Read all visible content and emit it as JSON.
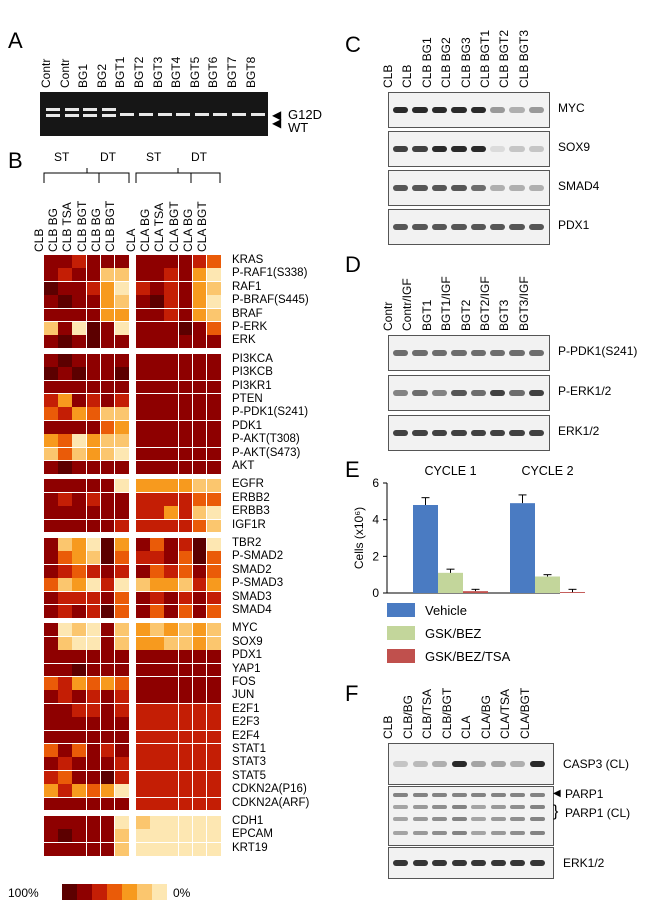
{
  "panels": {
    "a": "A",
    "b": "B",
    "c": "C",
    "d": "D",
    "e": "E",
    "f": "F"
  },
  "panelA": {
    "lanes": [
      "Contr",
      "Contr",
      "BG1",
      "BG2",
      "BGT1",
      "BGT2",
      "BGT3",
      "BGT4",
      "BGT5",
      "BGT6",
      "BGT7",
      "BGT8"
    ],
    "band_g12d": "G12D",
    "band_wt": "WT"
  },
  "panelB": {
    "groups": {
      "st1": "ST",
      "dt1": "DT",
      "st2": "ST",
      "dt2": "DT"
    },
    "cols_left": [
      "CLB",
      "CLB BG",
      "CLB TSA",
      "CLB BGT",
      "CLB BG",
      "CLB BGT"
    ],
    "cols_right": [
      "CLA",
      "CLA BG",
      "CLA TSA",
      "CLA BGT",
      "CLA BG",
      "CLA BGT"
    ],
    "legend_max": "100%",
    "legend_min": "0%",
    "palette": [
      "#5c0000",
      "#8e0000",
      "#c41e05",
      "#ea5b08",
      "#f79a1e",
      "#fbc66e",
      "#fde7b2"
    ],
    "blocks": [
      {
        "genes": [
          "KRAS",
          "P-RAF1(S338)",
          "RAF1",
          "P-BRAF(S445)",
          "BRAF",
          "P-ERK",
          "ERK"
        ],
        "left": [
          [
            1,
            1,
            2,
            1,
            1,
            1
          ],
          [
            1,
            2,
            1,
            1,
            5,
            5
          ],
          [
            0,
            1,
            1,
            2,
            4,
            6
          ],
          [
            1,
            0,
            1,
            1,
            4,
            5
          ],
          [
            1,
            1,
            1,
            1,
            4,
            4
          ],
          [
            5,
            1,
            6,
            0,
            1,
            6
          ],
          [
            1,
            0,
            1,
            0,
            1,
            1
          ]
        ],
        "right": [
          [
            1,
            1,
            1,
            1,
            2,
            3
          ],
          [
            1,
            1,
            2,
            1,
            4,
            6
          ],
          [
            2,
            1,
            2,
            1,
            4,
            5
          ],
          [
            1,
            0,
            2,
            1,
            4,
            6
          ],
          [
            1,
            1,
            2,
            1,
            4,
            5
          ],
          [
            1,
            1,
            1,
            0,
            1,
            3
          ],
          [
            1,
            1,
            1,
            1,
            1,
            1
          ]
        ]
      },
      {
        "genes": [
          "PI3KCA",
          "PI3KCB",
          "PI3KR1",
          "PTEN",
          "P-PDK1(S241)",
          "PDK1",
          "P-AKT(T308)",
          "P-AKT(S473)",
          "AKT"
        ],
        "left": [
          [
            1,
            0,
            1,
            1,
            1,
            1
          ],
          [
            0,
            1,
            0,
            1,
            1,
            0
          ],
          [
            1,
            1,
            1,
            1,
            1,
            1
          ],
          [
            2,
            4,
            1,
            2,
            1,
            2
          ],
          [
            3,
            2,
            4,
            3,
            5,
            5
          ],
          [
            1,
            1,
            1,
            1,
            3,
            4
          ],
          [
            4,
            3,
            6,
            4,
            5,
            5
          ],
          [
            5,
            3,
            5,
            4,
            5,
            6
          ],
          [
            1,
            0,
            1,
            1,
            1,
            1
          ]
        ],
        "right": [
          [
            1,
            1,
            1,
            1,
            1,
            1
          ],
          [
            1,
            1,
            1,
            1,
            1,
            1
          ],
          [
            1,
            1,
            1,
            1,
            1,
            1
          ],
          [
            1,
            1,
            1,
            1,
            1,
            1
          ],
          [
            1,
            1,
            1,
            1,
            1,
            1
          ],
          [
            1,
            1,
            1,
            1,
            1,
            1
          ],
          [
            1,
            1,
            1,
            1,
            1,
            1
          ],
          [
            1,
            1,
            1,
            1,
            1,
            1
          ],
          [
            1,
            1,
            1,
            1,
            1,
            1
          ]
        ]
      },
      {
        "genes": [
          "EGFR",
          "ERBB2",
          "ERBB3",
          "IGF1R"
        ],
        "left": [
          [
            1,
            1,
            1,
            1,
            1,
            6
          ],
          [
            1,
            2,
            1,
            2,
            1,
            1
          ],
          [
            1,
            1,
            1,
            1,
            1,
            1
          ],
          [
            1,
            1,
            1,
            1,
            1,
            2
          ]
        ],
        "right": [
          [
            4,
            4,
            4,
            4,
            5,
            5
          ],
          [
            2,
            2,
            2,
            2,
            3,
            3
          ],
          [
            2,
            2,
            4,
            2,
            5,
            6
          ],
          [
            2,
            2,
            2,
            2,
            3,
            5
          ]
        ]
      },
      {
        "genes": [
          "TBR2",
          "P-SMAD2",
          "SMAD2",
          "P-SMAD3",
          "SMAD3",
          "SMAD4"
        ],
        "left": [
          [
            1,
            5,
            4,
            6,
            0,
            4
          ],
          [
            1,
            3,
            4,
            5,
            0,
            3
          ],
          [
            1,
            2,
            3,
            2,
            1,
            2
          ],
          [
            3,
            5,
            4,
            6,
            2,
            6
          ],
          [
            1,
            2,
            2,
            2,
            1,
            3
          ],
          [
            1,
            2,
            1,
            2,
            0,
            3
          ]
        ],
        "right": [
          [
            1,
            3,
            1,
            2,
            0,
            6
          ],
          [
            2,
            2,
            1,
            3,
            0,
            3
          ],
          [
            1,
            3,
            2,
            3,
            1,
            3
          ],
          [
            5,
            4,
            4,
            5,
            2,
            4
          ],
          [
            1,
            2,
            1,
            2,
            1,
            2
          ],
          [
            1,
            3,
            1,
            3,
            1,
            3
          ]
        ]
      },
      {
        "genes": [
          "MYC",
          "SOX9",
          "PDX1",
          "YAP1",
          "FOS",
          "JUN",
          "E2F1",
          "E2F3",
          "E2F4",
          "STAT1",
          "STAT3",
          "STAT5",
          "CDKN2A(P16)",
          "CDKN2A(ARF)"
        ],
        "left": [
          [
            1,
            6,
            5,
            6,
            1,
            5
          ],
          [
            1,
            5,
            6,
            6,
            1,
            5
          ],
          [
            1,
            1,
            1,
            1,
            1,
            1
          ],
          [
            1,
            1,
            0,
            1,
            1,
            1
          ],
          [
            3,
            2,
            4,
            3,
            4,
            3
          ],
          [
            1,
            2,
            1,
            2,
            1,
            2
          ],
          [
            1,
            1,
            2,
            2,
            1,
            2
          ],
          [
            1,
            1,
            1,
            1,
            1,
            1
          ],
          [
            1,
            1,
            1,
            1,
            1,
            1
          ],
          [
            3,
            1,
            3,
            1,
            2,
            1
          ],
          [
            1,
            2,
            1,
            1,
            1,
            2
          ],
          [
            2,
            3,
            1,
            1,
            0,
            2
          ],
          [
            4,
            2,
            4,
            3,
            4,
            6
          ],
          [
            1,
            1,
            1,
            1,
            1,
            1
          ]
        ],
        "right": [
          [
            4,
            5,
            4,
            5,
            4,
            5
          ],
          [
            4,
            4,
            5,
            5,
            4,
            5
          ],
          [
            1,
            1,
            1,
            1,
            1,
            1
          ],
          [
            1,
            1,
            1,
            1,
            1,
            1
          ],
          [
            1,
            1,
            1,
            1,
            1,
            1
          ],
          [
            1,
            1,
            1,
            1,
            1,
            1
          ],
          [
            2,
            2,
            2,
            2,
            2,
            2
          ],
          [
            2,
            2,
            2,
            2,
            2,
            2
          ],
          [
            2,
            2,
            2,
            2,
            2,
            2
          ],
          [
            2,
            2,
            2,
            2,
            2,
            2
          ],
          [
            2,
            2,
            2,
            2,
            2,
            2
          ],
          [
            2,
            2,
            2,
            2,
            2,
            2
          ],
          [
            2,
            2,
            2,
            2,
            2,
            2
          ],
          [
            2,
            2,
            2,
            2,
            2,
            2
          ]
        ]
      },
      {
        "genes": [
          "CDH1",
          "EPCAM",
          "KRT19"
        ],
        "left": [
          [
            1,
            1,
            1,
            1,
            1,
            6
          ],
          [
            1,
            0,
            1,
            1,
            1,
            5
          ],
          [
            1,
            1,
            1,
            1,
            1,
            5
          ]
        ],
        "right": [
          [
            5,
            6,
            6,
            6,
            6,
            6
          ],
          [
            6,
            6,
            6,
            6,
            6,
            6
          ],
          [
            6,
            6,
            6,
            6,
            6,
            6
          ]
        ]
      }
    ]
  },
  "panelC": {
    "lanes": [
      "CLB",
      "CLB",
      "CLB BG1",
      "CLB BG2",
      "CLB BG3",
      "CLB BGT1",
      "CLB BGT2",
      "CLB BGT3"
    ],
    "blots": [
      "MYC",
      "SOX9",
      "SMAD4",
      "PDX1"
    ]
  },
  "panelD": {
    "lanes": [
      "Contr",
      "Contr/IGF",
      "BGT1",
      "BGT1/IGF",
      "BGT2",
      "BGT2/IGF",
      "BGT3",
      "BGT3/IGF"
    ],
    "blots": [
      "P-PDK1(S241)",
      "P-ERK1/2",
      "ERK1/2"
    ]
  },
  "panelF": {
    "lanes": [
      "CLB",
      "CLB/BG",
      "CLB/TSA",
      "CLB/BGT",
      "CLA",
      "CLA/BG",
      "CLA/TSA",
      "CLA/BGT"
    ],
    "blots": {
      "casp3": "CASP3 (CL)",
      "parp1": "PARP1",
      "parp1cl": "PARP1 (CL)",
      "erk": "ERK1/2"
    }
  },
  "chart_data": {
    "type": "bar",
    "categories": [
      "CYCLE 1",
      "CYCLE 2"
    ],
    "ylabel": "Cells (x10⁶)",
    "ylim": [
      0,
      6
    ],
    "yticks": [
      0,
      2,
      4,
      6
    ],
    "series": [
      {
        "name": "Vehicle",
        "color": "#4a7bc2",
        "values": [
          4.8,
          4.9
        ],
        "errors": [
          0.4,
          0.45
        ]
      },
      {
        "name": "GSK/BEZ",
        "color": "#c3d69b",
        "values": [
          1.1,
          0.9
        ],
        "errors": [
          0.2,
          0.1
        ]
      },
      {
        "name": "GSK/BEZ/TSA",
        "color": "#c0504d",
        "values": [
          0.1,
          0.05
        ],
        "errors": [
          0.1,
          0.15
        ]
      }
    ]
  }
}
